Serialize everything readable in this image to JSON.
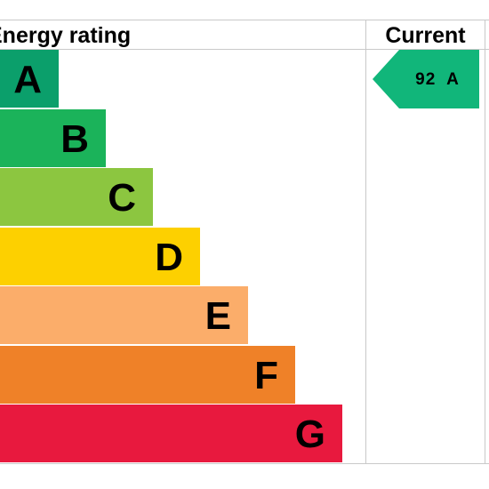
{
  "header": {
    "rating_label": "Energy rating",
    "current_label": "Current"
  },
  "bands": [
    {
      "letter": "A",
      "color": "#0b9f6b"
    },
    {
      "letter": "B",
      "color": "#1bb35a"
    },
    {
      "letter": "C",
      "color": "#8cc640"
    },
    {
      "letter": "D",
      "color": "#fdd000"
    },
    {
      "letter": "E",
      "color": "#fbad6a"
    },
    {
      "letter": "F",
      "color": "#ef8128"
    },
    {
      "letter": "G",
      "color": "#e8193e"
    }
  ],
  "current": {
    "score": "92",
    "band": "A",
    "color": "#11b67a"
  }
}
